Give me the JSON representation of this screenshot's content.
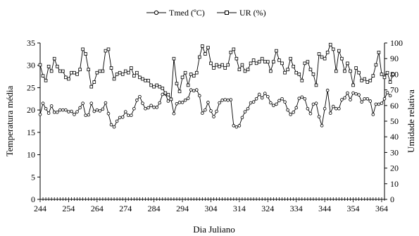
{
  "chart_data": {
    "type": "line",
    "xlabel": "Dia Juliano",
    "ylabel_left": "Temperatura média",
    "ylabel_right": "Umidade relativa",
    "x_ticks": [
      244,
      254,
      264,
      274,
      284,
      294,
      304,
      314,
      324,
      334,
      344,
      354,
      364
    ],
    "y_left_ticks": [
      0,
      5,
      10,
      15,
      20,
      25,
      30,
      35
    ],
    "y_right_ticks": [
      0,
      10,
      20,
      30,
      40,
      50,
      60,
      70,
      80,
      90,
      100
    ],
    "xlim": [
      244,
      365
    ],
    "ylim_left": [
      0,
      35
    ],
    "ylim_right": [
      0,
      100
    ],
    "legend_position": "top-center",
    "series": [
      {
        "name": "Tmed (ºC)",
        "axis": "left",
        "marker": "circle",
        "x_start": 244,
        "values": [
          19,
          21.5,
          20.3,
          19.3,
          20.9,
          19.5,
          19.5,
          20,
          20,
          20,
          19.6,
          19.7,
          19,
          19.6,
          20.5,
          21.5,
          18.8,
          18.9,
          21.5,
          19.7,
          20,
          19.8,
          20.2,
          21.6,
          19.2,
          16.7,
          16.2,
          17.5,
          18.3,
          18.4,
          19.6,
          18.8,
          18.8,
          20.3,
          22.2,
          23,
          21.5,
          20.3,
          20.5,
          21,
          20.6,
          20.6,
          21.6,
          23.5,
          23.6,
          22,
          22.4,
          19.2,
          21.4,
          21.7,
          21.7,
          22.2,
          22.6,
          24.5,
          24.3,
          24.5,
          23.2,
          19.3,
          20,
          21.7,
          19.8,
          18.5,
          19.7,
          21.6,
          22.2,
          22.3,
          22.2,
          22.3,
          16.5,
          16.2,
          16.5,
          18.3,
          19.6,
          20.3,
          21.6,
          21.8,
          22.5,
          23.5,
          22.7,
          23.7,
          23,
          21.6,
          21,
          21.3,
          22.1,
          22.5,
          21.8,
          20,
          19,
          19.5,
          20.5,
          22.6,
          22.9,
          22.5,
          20.3,
          19.2,
          21.3,
          21.5,
          18.5,
          16.5,
          20.3,
          24.4,
          19.3,
          20.8,
          20.3,
          20.3,
          22.3,
          22.7,
          23.8,
          22.3,
          23.8,
          23.6,
          23.4,
          21.8,
          22.5,
          22.5,
          22,
          19,
          21.3,
          21.3,
          21.5,
          22.5,
          23.9,
          23.2
        ]
      },
      {
        "name": "UR (%)",
        "axis": "right",
        "marker": "square",
        "x_start": 244,
        "values": [
          86,
          79,
          76,
          85,
          82,
          90,
          85,
          82,
          82,
          78,
          77,
          81,
          81,
          80,
          83,
          96,
          93,
          83,
          72,
          75,
          81,
          82,
          82,
          95,
          96,
          84,
          77,
          80,
          81,
          80,
          82,
          81,
          84,
          79,
          81,
          78,
          77,
          76,
          76,
          73,
          72,
          73,
          72,
          71,
          68,
          67,
          64,
          90,
          74,
          69,
          78,
          81,
          73,
          80,
          79,
          81,
          91,
          98,
          93,
          97,
          87,
          84,
          86,
          85,
          86,
          84,
          86,
          94,
          96,
          90,
          83,
          86,
          82,
          83,
          87,
          89,
          87,
          88,
          90,
          88,
          88,
          82,
          88,
          95,
          89,
          87,
          81,
          83,
          90,
          85,
          81,
          80,
          76,
          87,
          88,
          83,
          80,
          73,
          93,
          91,
          90,
          94,
          99,
          96,
          82,
          95,
          90,
          82,
          87,
          82,
          73,
          84,
          81,
          76,
          77,
          75,
          76,
          79,
          86,
          94,
          80,
          78,
          81,
          75,
          80
        ]
      }
    ]
  }
}
